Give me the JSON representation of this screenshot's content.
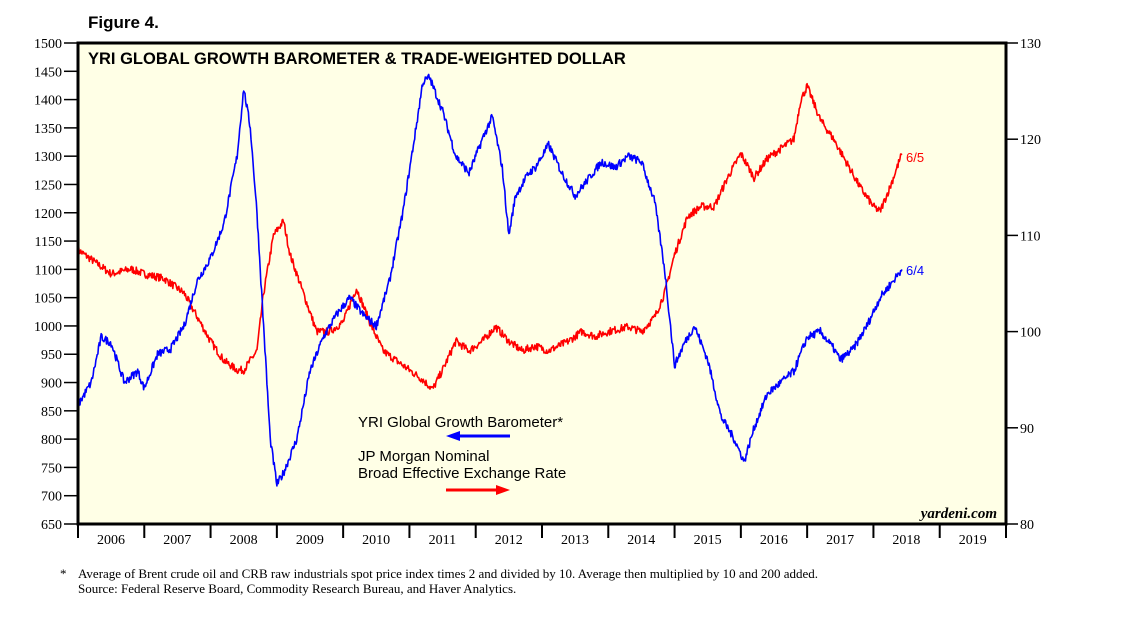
{
  "figure_label": "Figure 4.",
  "chart_data": {
    "type": "line",
    "title": "YRI GLOBAL GROWTH BAROMETER & TRADE-WEIGHTED DOLLAR",
    "x_tick_labels": [
      "2006",
      "2007",
      "2008",
      "2009",
      "2010",
      "2011",
      "2012",
      "2013",
      "2014",
      "2015",
      "2016",
      "2017",
      "2018",
      "2019"
    ],
    "xlim": [
      2006,
      2020
    ],
    "left_axis": {
      "ylim": [
        650,
        1500
      ],
      "ticks": [
        650,
        700,
        750,
        800,
        850,
        900,
        950,
        1000,
        1050,
        1100,
        1150,
        1200,
        1250,
        1300,
        1350,
        1400,
        1450,
        1500
      ]
    },
    "right_axis": {
      "ylim": [
        80,
        130
      ],
      "ticks": [
        80,
        90,
        100,
        110,
        120,
        130
      ]
    },
    "grid": false,
    "series": [
      {
        "name": "YRI Global Growth Barometer*",
        "axis": "left",
        "color": "#0000ff",
        "end_label": "6/4",
        "x": [
          2006.0,
          2006.2,
          2006.35,
          2006.5,
          2006.7,
          2006.9,
          2007.0,
          2007.2,
          2007.4,
          2007.6,
          2007.8,
          2008.0,
          2008.2,
          2008.4,
          2008.5,
          2008.6,
          2008.7,
          2008.8,
          2008.9,
          2009.0,
          2009.1,
          2009.3,
          2009.5,
          2009.7,
          2009.9,
          2010.1,
          2010.3,
          2010.5,
          2010.7,
          2010.9,
          2011.1,
          2011.2,
          2011.3,
          2011.5,
          2011.7,
          2011.9,
          2012.1,
          2012.25,
          2012.4,
          2012.5,
          2012.6,
          2012.8,
          2012.9,
          2013.1,
          2013.3,
          2013.5,
          2013.7,
          2013.9,
          2014.1,
          2014.3,
          2014.5,
          2014.7,
          2014.85,
          2015.0,
          2015.15,
          2015.3,
          2015.5,
          2015.7,
          2015.9,
          2016.05,
          2016.2,
          2016.4,
          2016.6,
          2016.8,
          2017.0,
          2017.2,
          2017.4,
          2017.5,
          2017.7,
          2017.9,
          2018.1,
          2018.3,
          2018.43
        ],
        "values": [
          860,
          900,
          980,
          970,
          900,
          920,
          890,
          950,
          960,
          1000,
          1080,
          1120,
          1180,
          1300,
          1420,
          1350,
          1200,
          1000,
          800,
          720,
          740,
          800,
          920,
          980,
          1020,
          1050,
          1020,
          1000,
          1080,
          1200,
          1350,
          1430,
          1440,
          1380,
          1300,
          1270,
          1330,
          1370,
          1280,
          1160,
          1230,
          1270,
          1280,
          1320,
          1270,
          1230,
          1260,
          1290,
          1280,
          1300,
          1290,
          1220,
          1100,
          930,
          970,
          1000,
          940,
          840,
          800,
          760,
          820,
          880,
          900,
          920,
          980,
          990,
          960,
          940,
          960,
          1000,
          1050,
          1080,
          1100
        ]
      },
      {
        "name": "JP Morgan Nominal Broad Effective Exchange Rate",
        "name_lines": [
          "JP Morgan Nominal",
          "Broad Effective Exchange Rate"
        ],
        "axis": "right",
        "color": "#ff0000",
        "end_label": "6/5",
        "x": [
          2006.0,
          2006.3,
          2006.5,
          2006.8,
          2007.0,
          2007.3,
          2007.6,
          2007.8,
          2008.0,
          2008.2,
          2008.4,
          2008.5,
          2008.7,
          2008.8,
          2008.95,
          2009.1,
          2009.2,
          2009.4,
          2009.6,
          2009.8,
          2010.0,
          2010.2,
          2010.4,
          2010.6,
          2010.9,
          2011.2,
          2011.35,
          2011.5,
          2011.7,
          2011.9,
          2012.1,
          2012.3,
          2012.5,
          2012.7,
          2012.9,
          2013.1,
          2013.4,
          2013.6,
          2013.8,
          2014.0,
          2014.3,
          2014.5,
          2014.7,
          2014.85,
          2015.0,
          2015.2,
          2015.4,
          2015.6,
          2015.8,
          2016.0,
          2016.2,
          2016.4,
          2016.6,
          2016.8,
          2016.9,
          2017.0,
          2017.2,
          2017.4,
          2017.6,
          2017.8,
          2018.0,
          2018.1,
          2018.25,
          2018.43
        ],
        "values": [
          108.5,
          107,
          106,
          106.5,
          106,
          105.5,
          104,
          101.5,
          99,
          97,
          96,
          96,
          98,
          104,
          110,
          111.5,
          108,
          104,
          100,
          100,
          101,
          104.5,
          101,
          98,
          96.5,
          95,
          94,
          96,
          99,
          98,
          99,
          100.5,
          99,
          98,
          98.5,
          98,
          99,
          100,
          99.5,
          100,
          100.5,
          100,
          101.5,
          104,
          108,
          112,
          113,
          113,
          116,
          118.5,
          116,
          118,
          119,
          120,
          124,
          125.5,
          122,
          120,
          117.5,
          115,
          113,
          112.5,
          115,
          118.5
        ]
      }
    ],
    "legend_placement": "center-bottom",
    "watermark": "yardeni.com"
  },
  "footnote": {
    "star": "*",
    "line1": "Average of Brent crude oil and CRB raw industrials spot price index times 2 and divided by 10. Average then multiplied by 10 and 200 added.",
    "line2": "Source: Federal Reserve Board, Commodity Research Bureau, and Haver Analytics."
  }
}
